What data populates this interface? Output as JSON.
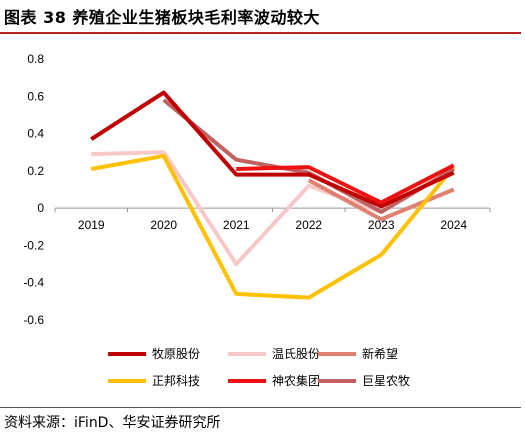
{
  "header": {
    "title": "图表 38 养殖企业生猪板块毛利率波动较大"
  },
  "footer": {
    "source": "资料来源：iFinD、华安证券研究所"
  },
  "chart_data": {
    "type": "line",
    "categories": [
      "2019",
      "2020",
      "2021",
      "2022",
      "2023",
      "2024"
    ],
    "ylim": [
      -0.6,
      0.8
    ],
    "yticks": [
      "0.8",
      "0.6",
      "0.4",
      "0.2",
      "0",
      "-0.2",
      "-0.4",
      "-0.6"
    ],
    "ytick_values": [
      0.8,
      0.6,
      0.4,
      0.2,
      0,
      -0.2,
      -0.4,
      -0.6
    ],
    "grid": false,
    "legend_position": "bottom",
    "series": [
      {
        "name": "牧原股份",
        "color": "#c00000",
        "values": [
          0.37,
          0.62,
          0.18,
          0.18,
          0.01,
          0.19
        ]
      },
      {
        "name": "温氏股份",
        "color": "#f8c8c8",
        "values": [
          0.29,
          0.3,
          -0.3,
          0.12,
          -0.02,
          0.22
        ]
      },
      {
        "name": "新希望",
        "color": "#e08070",
        "values": [
          null,
          null,
          null,
          0.15,
          -0.06,
          0.1
        ]
      },
      {
        "name": "正邦科技",
        "color": "#ffc000",
        "values": [
          0.21,
          0.28,
          -0.46,
          -0.48,
          -0.25,
          0.22
        ]
      },
      {
        "name": "神农集团",
        "color": "#ee1111",
        "values": [
          null,
          null,
          0.21,
          0.22,
          0.03,
          0.23
        ]
      },
      {
        "name": "巨星农牧",
        "color": "#c06060",
        "values": [
          null,
          0.58,
          0.26,
          0.19,
          -0.02,
          0.21
        ]
      }
    ]
  }
}
